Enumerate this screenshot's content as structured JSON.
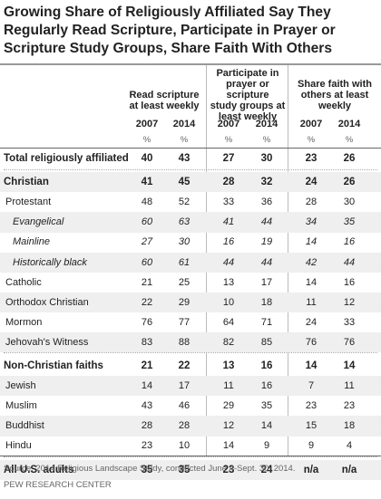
{
  "title_lines": [
    "Growing Share of Religiously Affiliated Say They",
    "Regularly Read Scripture, Participate in Prayer or",
    "Scripture Study Groups, Share Faith With Others"
  ],
  "groups": [
    {
      "label": "Read scripture at least weekly",
      "lines": [
        "Read scripture",
        "at least weekly"
      ]
    },
    {
      "label": "Participate in prayer or scripture study groups at least weekly",
      "lines": [
        "Participate in",
        "prayer or scripture",
        "study groups at",
        "least weekly"
      ]
    },
    {
      "label": "Share faith with others at least weekly",
      "lines": [
        "Share faith with",
        "others at least",
        "weekly"
      ]
    }
  ],
  "years": [
    "2007",
    "2014",
    "2007",
    "2014",
    "2007",
    "2014"
  ],
  "unit": "%",
  "rows": [
    {
      "label": "Total religiously affiliated",
      "values": [
        "40",
        "43",
        "27",
        "30",
        "23",
        "26"
      ],
      "style": "bold"
    },
    {
      "label": "Christian",
      "values": [
        "41",
        "45",
        "28",
        "32",
        "24",
        "26"
      ],
      "style": "bold"
    },
    {
      "label": "Protestant",
      "values": [
        "48",
        "52",
        "33",
        "36",
        "28",
        "30"
      ],
      "style": "normal"
    },
    {
      "label": "Evangelical",
      "values": [
        "60",
        "63",
        "41",
        "44",
        "34",
        "35"
      ],
      "style": "italic"
    },
    {
      "label": "Mainline",
      "values": [
        "27",
        "30",
        "16",
        "19",
        "14",
        "16"
      ],
      "style": "italic"
    },
    {
      "label": "Historically black",
      "values": [
        "60",
        "61",
        "44",
        "44",
        "42",
        "44"
      ],
      "style": "italic"
    },
    {
      "label": "Catholic",
      "values": [
        "21",
        "25",
        "13",
        "17",
        "14",
        "16"
      ],
      "style": "normal"
    },
    {
      "label": "Orthodox Christian",
      "values": [
        "22",
        "29",
        "10",
        "18",
        "11",
        "12"
      ],
      "style": "normal"
    },
    {
      "label": "Mormon",
      "values": [
        "76",
        "77",
        "64",
        "71",
        "24",
        "33"
      ],
      "style": "normal"
    },
    {
      "label": "Jehovah's Witness",
      "values": [
        "83",
        "88",
        "82",
        "85",
        "76",
        "76"
      ],
      "style": "normal"
    },
    {
      "label": "Non-Christian faiths",
      "values": [
        "21",
        "22",
        "13",
        "16",
        "14",
        "14"
      ],
      "style": "bold"
    },
    {
      "label": "Jewish",
      "values": [
        "14",
        "17",
        "11",
        "16",
        "7",
        "11"
      ],
      "style": "normal"
    },
    {
      "label": "Muslim",
      "values": [
        "43",
        "46",
        "29",
        "35",
        "23",
        "23"
      ],
      "style": "normal"
    },
    {
      "label": "Buddhist",
      "values": [
        "28",
        "28",
        "12",
        "14",
        "15",
        "18"
      ],
      "style": "normal"
    },
    {
      "label": "Hindu",
      "values": [
        "23",
        "10",
        "14",
        "9",
        "9",
        "4"
      ],
      "style": "normal"
    },
    {
      "label": "All U.S. adults",
      "values": [
        "35",
        "35",
        "23",
        "24",
        "n/a",
        "n/a"
      ],
      "style": "bold"
    }
  ],
  "source": "Source: 2014 Religious Landscape Study, conducted June 4-Sept. 30, 2014.",
  "credit": "PEW RESEARCH CENTER"
}
